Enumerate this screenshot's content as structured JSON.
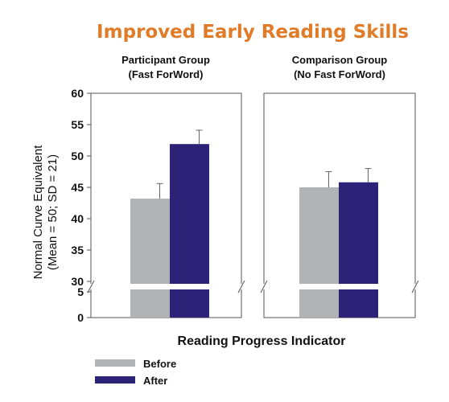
{
  "colors": {
    "title": "#e07b28",
    "before": "#b1b4b7",
    "after": "#2c2277",
    "axis": "#555555"
  },
  "chart_data": {
    "type": "bar",
    "title": "Improved Early Reading Skills",
    "xlabel": "Reading Progress Indicator",
    "ylabel": [
      "Normal Curve Equivalent",
      "(Mean = 50; SD = 21)"
    ],
    "axis_break": true,
    "y_ticks_upper": [
      "60",
      "55",
      "50",
      "45",
      "40",
      "35",
      "30"
    ],
    "y_ticks_lower": [
      "5",
      "0"
    ],
    "ylim_upper": [
      30,
      60
    ],
    "ylim_lower": [
      0,
      5
    ],
    "legend_position": "bottom-left",
    "series": [
      {
        "name": "Before",
        "color_key": "before"
      },
      {
        "name": "After",
        "color_key": "after"
      }
    ],
    "panels": [
      {
        "title_line1": "Participant Group",
        "title_line2": "(Fast ForWord)",
        "before": {
          "value": 43.2,
          "error": 2.4
        },
        "after": {
          "value": 51.9,
          "error": 2.2
        }
      },
      {
        "title_line1": "Comparison Group",
        "title_line2": "(No Fast ForWord)",
        "before": {
          "value": 45.0,
          "error": 2.5
        },
        "after": {
          "value": 45.8,
          "error": 2.2
        }
      }
    ]
  }
}
